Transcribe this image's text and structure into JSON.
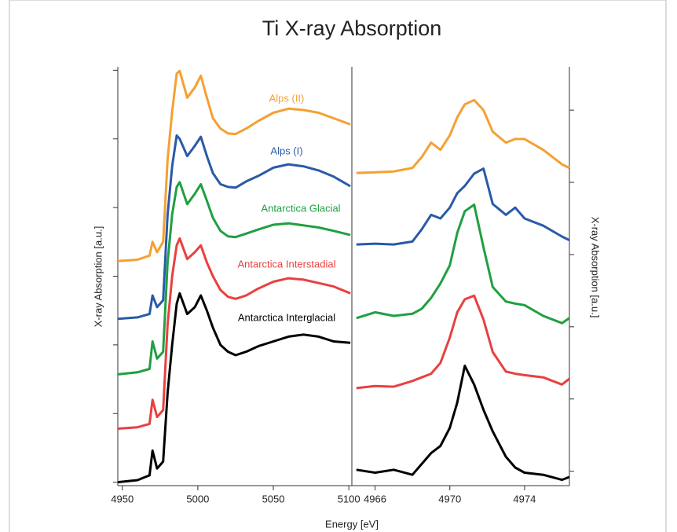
{
  "chart_data": [
    {
      "type": "line",
      "title": "Ti X-ray Absorption",
      "xlabel": "Energy [eV]",
      "ylabel": "X-ray Absorption [a.u.]",
      "x": [
        4947,
        4960,
        4968,
        4970,
        4973,
        4977,
        4980,
        4983,
        4986,
        4988,
        4993,
        4998,
        5002,
        5006,
        5010,
        5015,
        5020,
        5025,
        5032,
        5040,
        5050,
        5060,
        5070,
        5080,
        5090,
        5101
      ],
      "xlim": [
        4947,
        5102
      ],
      "xticks": [
        4950,
        5000,
        5050,
        5100
      ],
      "ylim": [
        -0.05,
        6.05
      ],
      "yticks": [
        0,
        1,
        2,
        3,
        4,
        5,
        6
      ],
      "ytick_labels": false,
      "series": [
        {
          "name": "Alps (II)",
          "color": "#f5a033",
          "values": [
            3.22,
            3.24,
            3.3,
            3.5,
            3.35,
            3.5,
            4.7,
            5.4,
            5.95,
            5.99,
            5.6,
            5.75,
            5.92,
            5.6,
            5.3,
            5.15,
            5.08,
            5.07,
            5.15,
            5.26,
            5.38,
            5.44,
            5.42,
            5.38,
            5.3,
            5.21
          ]
        },
        {
          "name": "Alps (I)",
          "color": "#2a5aa8",
          "values": [
            2.38,
            2.4,
            2.45,
            2.72,
            2.55,
            2.65,
            3.9,
            4.6,
            5.05,
            5.0,
            4.75,
            4.9,
            5.03,
            4.75,
            4.5,
            4.34,
            4.3,
            4.29,
            4.38,
            4.46,
            4.58,
            4.63,
            4.6,
            4.54,
            4.45,
            4.31
          ]
        },
        {
          "name": "Antarctica Glacial",
          "color": "#1fa040",
          "values": [
            1.57,
            1.6,
            1.65,
            2.05,
            1.8,
            1.9,
            3.2,
            3.9,
            4.3,
            4.37,
            4.05,
            4.2,
            4.34,
            4.1,
            3.85,
            3.66,
            3.58,
            3.57,
            3.62,
            3.68,
            3.75,
            3.77,
            3.74,
            3.71,
            3.66,
            3.6
          ]
        },
        {
          "name": "Antarctica Interstadial",
          "color": "#e84040",
          "values": [
            0.78,
            0.8,
            0.85,
            1.2,
            0.95,
            1.05,
            2.3,
            3.0,
            3.45,
            3.55,
            3.25,
            3.35,
            3.45,
            3.2,
            3.0,
            2.8,
            2.7,
            2.67,
            2.72,
            2.82,
            2.92,
            2.97,
            2.95,
            2.9,
            2.85,
            2.75
          ]
        },
        {
          "name": "Antarctica Interglacial",
          "color": "#000000",
          "values": [
            0,
            0.03,
            0.1,
            0.46,
            0.2,
            0.3,
            1.3,
            2.0,
            2.6,
            2.75,
            2.45,
            2.55,
            2.72,
            2.5,
            2.25,
            2.0,
            1.9,
            1.85,
            1.9,
            1.98,
            2.05,
            2.12,
            2.15,
            2.12,
            2.05,
            2.03
          ]
        }
      ]
    },
    {
      "type": "line",
      "ylabel": "X-ray Absorption [a.u.]",
      "x": [
        4965,
        4966,
        4967,
        4968,
        4968.5,
        4969,
        4969.5,
        4970,
        4970.4,
        4970.8,
        4971.3,
        4971.8,
        4972.3,
        4973,
        4973.5,
        4974,
        4975,
        4976,
        4976.4
      ],
      "xlim": [
        4964.8,
        4976.4
      ],
      "xticks": [
        4966,
        4970,
        4974
      ],
      "ylim": [
        -0.2,
        5.6
      ],
      "yticks": [
        0,
        1,
        2,
        3,
        4,
        5
      ],
      "ytick_labels": false,
      "series": [
        {
          "color": "#f5a033",
          "values": [
            4.13,
            4.14,
            4.15,
            4.2,
            4.35,
            4.55,
            4.45,
            4.65,
            4.9,
            5.08,
            5.14,
            5.0,
            4.7,
            4.55,
            4.6,
            4.6,
            4.45,
            4.25,
            4.2
          ]
        },
        {
          "color": "#2a5aa8",
          "values": [
            3.14,
            3.15,
            3.14,
            3.18,
            3.35,
            3.55,
            3.5,
            3.65,
            3.85,
            3.95,
            4.12,
            4.19,
            3.7,
            3.55,
            3.65,
            3.5,
            3.4,
            3.25,
            3.2
          ]
        },
        {
          "color": "#1fa040",
          "values": [
            2.12,
            2.2,
            2.15,
            2.18,
            2.25,
            2.4,
            2.6,
            2.85,
            3.3,
            3.6,
            3.69,
            3.1,
            2.55,
            2.35,
            2.32,
            2.3,
            2.15,
            2.05,
            2.12
          ]
        },
        {
          "color": "#e84040",
          "values": [
            1.15,
            1.18,
            1.17,
            1.25,
            1.3,
            1.35,
            1.5,
            1.85,
            2.2,
            2.38,
            2.43,
            2.1,
            1.65,
            1.38,
            1.35,
            1.33,
            1.3,
            1.2,
            1.28
          ]
        },
        {
          "color": "#000000",
          "values": [
            0.02,
            -0.02,
            0.02,
            -0.05,
            0.1,
            0.25,
            0.35,
            0.6,
            0.95,
            1.46,
            1.2,
            0.85,
            0.55,
            0.2,
            0.05,
            -0.02,
            -0.05,
            -0.12,
            -0.08
          ]
        }
      ]
    }
  ]
}
